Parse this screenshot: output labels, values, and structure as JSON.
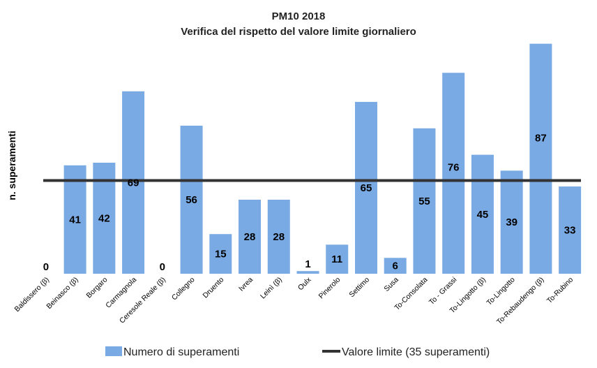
{
  "chart_data": {
    "type": "bar",
    "title": "PM10 2018",
    "subtitle": "Verifica del rispetto del valore limite giornaliero",
    "xlabel": "",
    "ylabel": "n. superamenti",
    "ylim": [
      0,
      90
    ],
    "grid": false,
    "legend_position": "bottom",
    "categories": [
      "Baldissero (β)",
      "Beinasco (β)",
      "Borgaro",
      "Carmagnola",
      "Ceresole Reale (β)",
      "Collegno",
      "Druento",
      "Ivrea",
      "Leinì (β)",
      "Oulx",
      "Pinerolo",
      "Settimo",
      "Susa",
      "To-Consolata",
      "To - Grassi",
      "To-Lingotto (β)",
      "To-Lingotto",
      "To-Rebaudengo (β)",
      "To-Rubino"
    ],
    "series": [
      {
        "name": "Numero di superamenti",
        "color": "#7aaae3",
        "values": [
          0,
          41,
          42,
          69,
          0,
          56,
          15,
          28,
          28,
          1,
          11,
          65,
          6,
          55,
          76,
          45,
          39,
          87,
          33
        ]
      }
    ],
    "limit_line": {
      "name": "Valore limite (35 superamenti)",
      "value": 35,
      "color": "#333333"
    }
  }
}
